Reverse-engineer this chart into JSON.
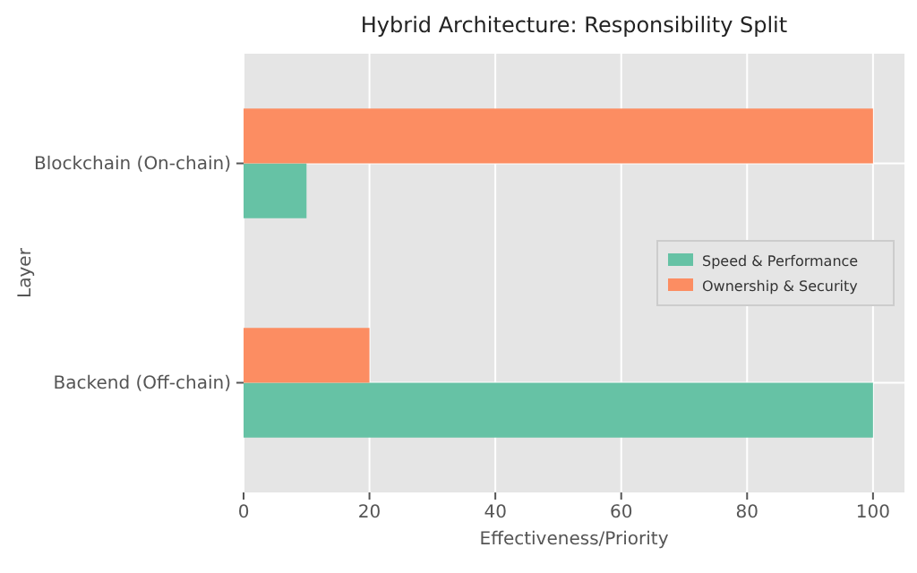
{
  "chart_data": {
    "type": "bar",
    "orientation": "horizontal",
    "title": "Hybrid Architecture: Responsibility Split",
    "xlabel": "Effectiveness/Priority",
    "ylabel": "Layer",
    "categories": [
      "Blockchain (On-chain)",
      "Backend (Off-chain)"
    ],
    "series": [
      {
        "name": "Speed & Performance",
        "color": "#66c2a5",
        "values": [
          10,
          100
        ]
      },
      {
        "name": "Ownership & Security",
        "color": "#fc8d62",
        "values": [
          100,
          20
        ]
      }
    ],
    "xlim": [
      0,
      105
    ],
    "xticks": [
      0,
      20,
      40,
      60,
      80,
      100
    ],
    "grid": true,
    "legend": "right"
  }
}
